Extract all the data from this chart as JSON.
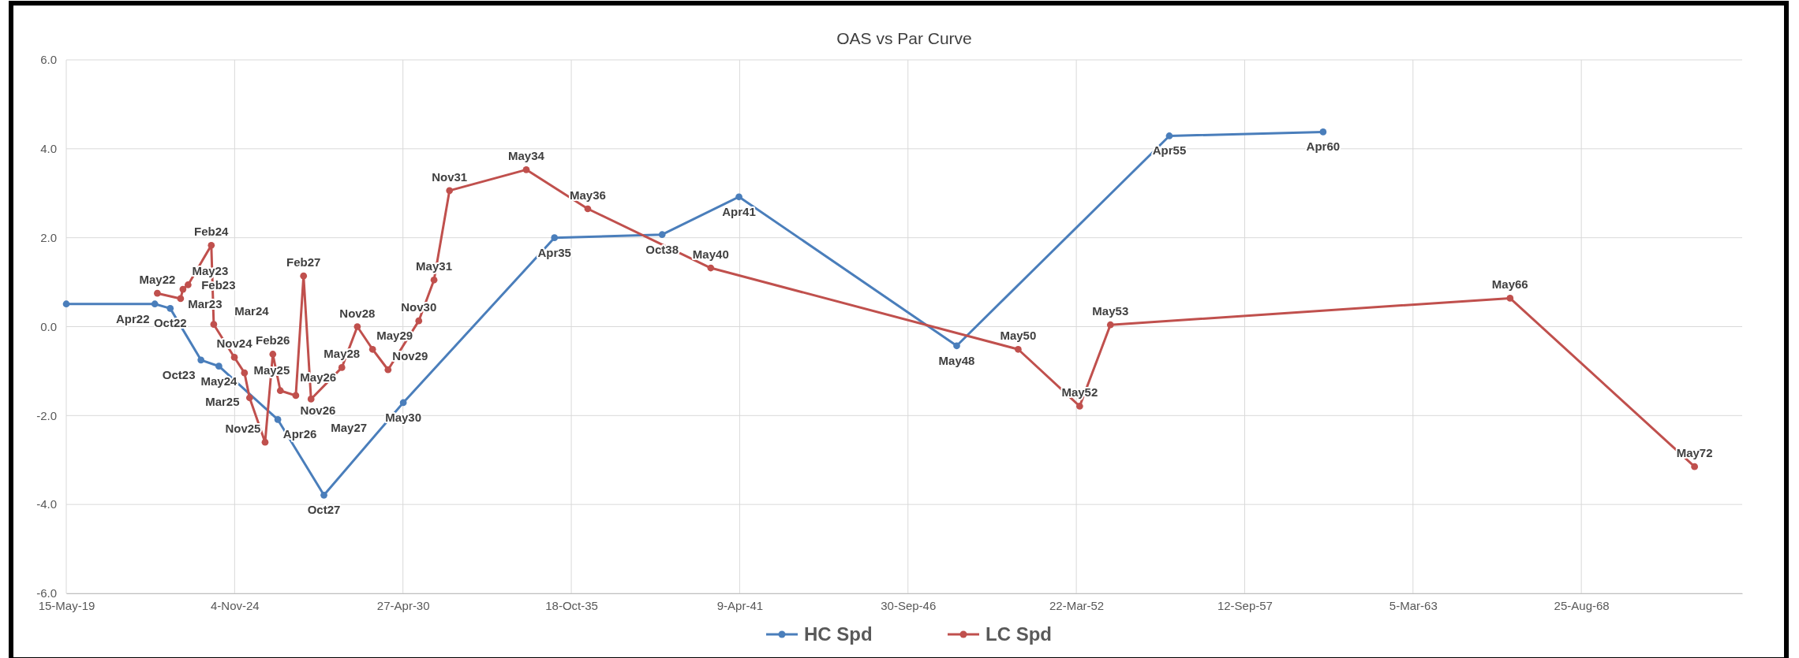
{
  "chart_data": {
    "type": "line",
    "title": "OAS vs Par Curve",
    "marker": "circle",
    "grid": true,
    "legend": "bottom",
    "xlim": [
      "2019-05-15",
      "2073-11-18"
    ],
    "xticks": [
      {
        "value": "2019-05-15",
        "label": "15-May-19"
      },
      {
        "value": "2024-11-04",
        "label": "4-Nov-24"
      },
      {
        "value": "2030-04-27",
        "label": "27-Apr-30"
      },
      {
        "value": "2035-10-18",
        "label": "18-Oct-35"
      },
      {
        "value": "2041-04-09",
        "label": "9-Apr-41"
      },
      {
        "value": "2046-09-30",
        "label": "30-Sep-46"
      },
      {
        "value": "2052-03-22",
        "label": "22-Mar-52"
      },
      {
        "value": "2057-09-12",
        "label": "12-Sep-57"
      },
      {
        "value": "2063-03-05",
        "label": "5-Mar-63"
      },
      {
        "value": "2068-08-25",
        "label": "25-Aug-68"
      }
    ],
    "ylim": [
      -6,
      6
    ],
    "yticks": [
      {
        "value": -6,
        "label": "-6.0"
      },
      {
        "value": -4,
        "label": "-4.0"
      },
      {
        "value": -2,
        "label": "-2.0"
      },
      {
        "value": 0,
        "label": "0.0"
      },
      {
        "value": 2,
        "label": "2.0"
      },
      {
        "value": 4,
        "label": "4.0"
      },
      {
        "value": 6,
        "label": "6.0"
      }
    ],
    "series": [
      {
        "name": "HC Spd",
        "color": "#4a7ebb",
        "x": [
          "2019-05-15",
          "2022-04",
          "2022-10",
          "2023-10",
          "2024-05",
          "2026-04",
          "2027-10",
          "2030-05",
          "2035-04",
          "2038-10",
          "2041-04",
          "2048-05",
          "2055-04",
          "2060-04"
        ],
        "values": [
          0.51,
          0.51,
          0.41,
          -0.75,
          -0.89,
          -2.09,
          -3.79,
          -1.71,
          2.0,
          2.07,
          2.92,
          -0.43,
          4.29,
          4.38
        ]
      },
      {
        "name": "LC Spd",
        "color": "#c0504d",
        "x": [
          "2022-05",
          "2023-02",
          "2023-03",
          "2023-05",
          "2024-02",
          "2024-03",
          "2024-11",
          "2025-03",
          "2025-05",
          "2025-11",
          "2026-02",
          "2026-05",
          "2026-11",
          "2027-02",
          "2027-05",
          "2028-05",
          "2028-11",
          "2029-05",
          "2029-11",
          "2030-11",
          "2031-05",
          "2031-11",
          "2034-05",
          "2036-05",
          "2040-05",
          "2050-05",
          "2052-05",
          "2053-05",
          "2066-05",
          "2072-05"
        ],
        "values": [
          0.75,
          0.63,
          0.84,
          0.94,
          1.83,
          0.05,
          -0.69,
          -1.04,
          -1.6,
          -2.6,
          -0.62,
          -1.44,
          -1.55,
          1.14,
          -1.63,
          -0.92,
          0.0,
          -0.51,
          -0.97,
          0.13,
          1.05,
          3.06,
          3.53,
          2.65,
          1.32,
          -0.51,
          -1.79,
          0.04,
          0.64,
          -3.15
        ]
      }
    ],
    "annotations": [
      {
        "text": "Apr22",
        "x": "2022-04",
        "y": 0.51
      },
      {
        "text": "Oct22",
        "x": "2022-10",
        "y": 0.41
      },
      {
        "text": "Oct23",
        "x": "2023-10",
        "y": -0.75
      },
      {
        "text": "May24",
        "x": "2024-05",
        "y": -0.89
      },
      {
        "text": "Apr26",
        "x": "2026-04",
        "y": -2.09
      },
      {
        "text": "Oct27",
        "x": "2027-10",
        "y": -3.79
      },
      {
        "text": "May30",
        "x": "2030-05",
        "y": -1.71
      },
      {
        "text": "Apr35",
        "x": "2035-04",
        "y": 2.0
      },
      {
        "text": "Oct38",
        "x": "2038-10",
        "y": 2.07
      },
      {
        "text": "Apr41",
        "x": "2041-04",
        "y": 2.92
      },
      {
        "text": "May48",
        "x": "2048-05",
        "y": -0.43
      },
      {
        "text": "Apr55",
        "x": "2055-04",
        "y": 4.29
      },
      {
        "text": "Apr60",
        "x": "2060-04",
        "y": 4.38
      },
      {
        "text": "May22",
        "x": "2022-05",
        "y": 0.75
      },
      {
        "text": "Feb23",
        "x": "2023-02",
        "y": 0.63
      },
      {
        "text": "Mar23",
        "x": "2023-03",
        "y": 0.84
      },
      {
        "text": "May23",
        "x": "2023-05",
        "y": 0.94
      },
      {
        "text": "Feb24",
        "x": "2024-02",
        "y": 1.83
      },
      {
        "text": "Mar24",
        "x": "2024-03",
        "y": 0.05
      },
      {
        "text": "Nov24",
        "x": "2024-11",
        "y": -0.69
      },
      {
        "text": "Mar25",
        "x": "2025-03",
        "y": -1.04
      },
      {
        "text": "May25",
        "x": "2025-05",
        "y": -1.6
      },
      {
        "text": "Nov25",
        "x": "2025-11",
        "y": -2.6
      },
      {
        "text": "Feb26",
        "x": "2026-02",
        "y": -0.62
      },
      {
        "text": "May26",
        "x": "2026-05",
        "y": -1.44
      },
      {
        "text": "Nov26",
        "x": "2026-11",
        "y": -1.55
      },
      {
        "text": "Feb27",
        "x": "2027-02",
        "y": 1.14
      },
      {
        "text": "May27",
        "x": "2027-05",
        "y": -1.63
      },
      {
        "text": "May28",
        "x": "2028-05",
        "y": -0.92
      },
      {
        "text": "Nov28",
        "x": "2028-11",
        "y": 0.0
      },
      {
        "text": "May29",
        "x": "2029-05",
        "y": -0.51
      },
      {
        "text": "Nov29",
        "x": "2029-11",
        "y": -0.97
      },
      {
        "text": "Nov30",
        "x": "2030-11",
        "y": 0.13
      },
      {
        "text": "May31",
        "x": "2031-05",
        "y": 1.05
      },
      {
        "text": "Nov31",
        "x": "2031-11",
        "y": 3.06
      },
      {
        "text": "May34",
        "x": "2034-05",
        "y": 3.53
      },
      {
        "text": "May36",
        "x": "2036-05",
        "y": 2.65
      },
      {
        "text": "May40",
        "x": "2040-05",
        "y": 1.32
      },
      {
        "text": "May50",
        "x": "2050-05",
        "y": -0.51
      },
      {
        "text": "May52",
        "x": "2052-05",
        "y": -1.79
      },
      {
        "text": "May53",
        "x": "2053-05",
        "y": 0.04
      },
      {
        "text": "May66",
        "x": "2066-05",
        "y": 0.64
      },
      {
        "text": "May72",
        "x": "2072-05",
        "y": -3.15
      }
    ]
  }
}
